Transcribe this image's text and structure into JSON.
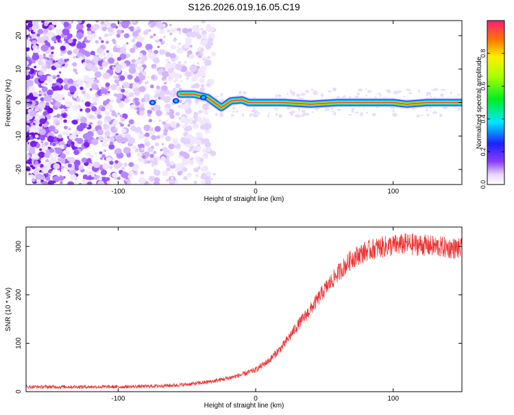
{
  "title": "S126.2026.019.16.05.C19",
  "chart_data": [
    {
      "type": "heatmap",
      "xlabel": "Height of straight line (km)",
      "ylabel": "Frequency (Hz)",
      "xlim": [
        -167,
        150
      ],
      "ylim": [
        -24.5,
        24.5
      ],
      "xticks": [
        -100,
        0,
        100
      ],
      "yticks": [
        -20,
        -10,
        0,
        10,
        20
      ],
      "grid": false,
      "colorbar": {
        "label": "Normalized spectral amplitude",
        "range": [
          0,
          1
        ],
        "ticks": [
          0.0,
          0.2,
          0.4,
          0.6,
          0.8
        ]
      },
      "noise_region_x": [
        -167,
        -30
      ],
      "ridge_path": [
        {
          "x": -55,
          "y": 2.5
        },
        {
          "x": -45,
          "y": 2.5
        },
        {
          "x": -35,
          "y": 1.5
        },
        {
          "x": -25,
          "y": -1.5
        },
        {
          "x": -18,
          "y": 0.5
        },
        {
          "x": -10,
          "y": 0.8
        },
        {
          "x": -5,
          "y": 0.0
        },
        {
          "x": 0,
          "y": 0.0
        },
        {
          "x": 20,
          "y": 0.0
        },
        {
          "x": 40,
          "y": -0.5
        },
        {
          "x": 60,
          "y": 0.0
        },
        {
          "x": 100,
          "y": 0.0
        },
        {
          "x": 110,
          "y": -0.5
        },
        {
          "x": 125,
          "y": 0.0
        },
        {
          "x": 150,
          "y": 0.0
        }
      ]
    },
    {
      "type": "line",
      "xlabel": "Height of straight line (km)",
      "ylabel": "SNR (10 * v/v)",
      "xlim": [
        -167,
        150
      ],
      "ylim": [
        0,
        340
      ],
      "xticks": [
        -100,
        0,
        100
      ],
      "yticks": [
        0,
        100,
        200,
        300
      ],
      "grid": false,
      "series": [
        {
          "name": "SNR",
          "color": "#ee3333",
          "x": [
            -167,
            -140,
            -120,
            -100,
            -80,
            -60,
            -50,
            -40,
            -30,
            -20,
            -10,
            0,
            10,
            20,
            30,
            40,
            50,
            60,
            70,
            80,
            90,
            100,
            110,
            120,
            130,
            140,
            150
          ],
          "values": [
            10,
            10,
            10,
            10,
            11,
            13,
            15,
            18,
            22,
            28,
            35,
            45,
            65,
            95,
            135,
            170,
            210,
            245,
            275,
            290,
            298,
            302,
            305,
            303,
            300,
            297,
            295
          ]
        }
      ]
    }
  ]
}
